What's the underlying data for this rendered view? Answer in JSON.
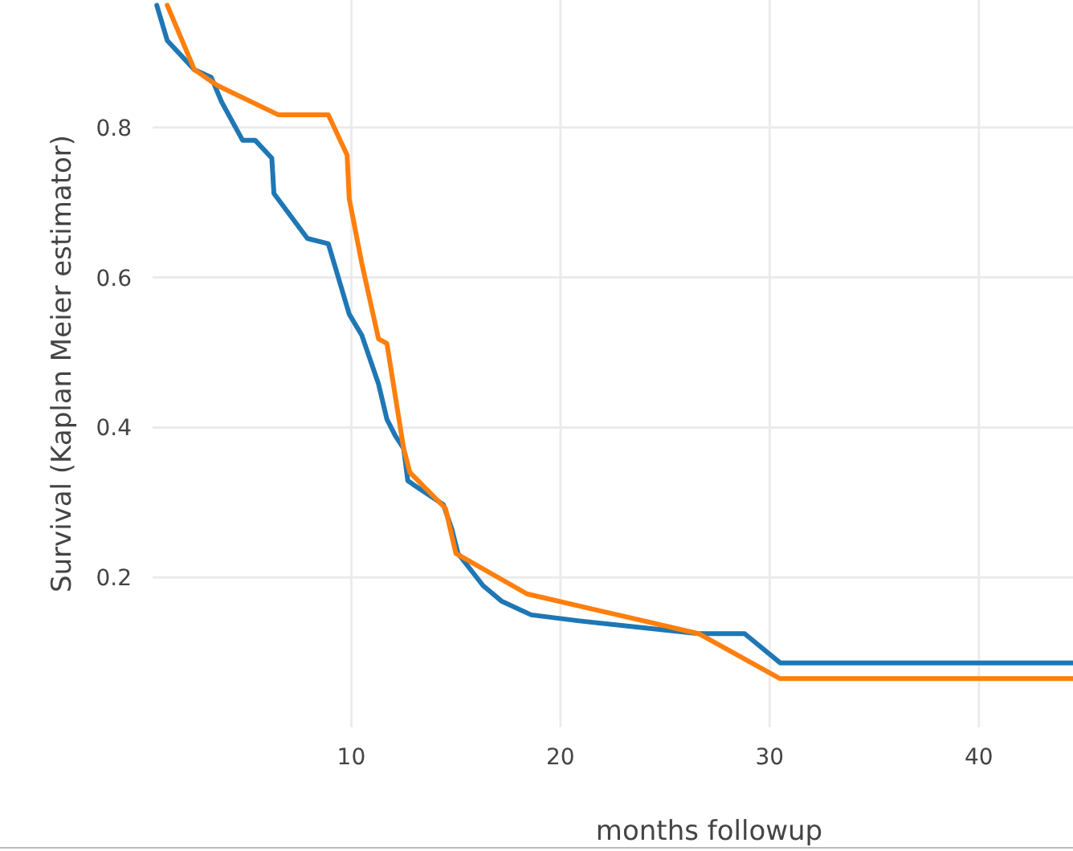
{
  "chart_data": {
    "type": "line",
    "xlabel": "months followup",
    "ylabel": "Survival (Kaplan Meier estimator)",
    "xlim": [
      0.5,
      44.5
    ],
    "ylim": [
      0,
      0.97
    ],
    "xticks": [
      10,
      20,
      30,
      40
    ],
    "yticks": [
      0.2,
      0.4,
      0.6,
      0.8
    ],
    "grid": true,
    "series": [
      {
        "color": "#1f77b4",
        "x": [
          0.7,
          1.2,
          2.5,
          3.3,
          3.8,
          4.8,
          5.4,
          6.2,
          6.3,
          7.9,
          8.9,
          9.9,
          10.5,
          11.3,
          11.7,
          12.1,
          12.5,
          12.7,
          13,
          14.4,
          14.8,
          15.1,
          16.3,
          17.2,
          18.6,
          20.9,
          26.6,
          28.8,
          30.5,
          44.5
        ],
        "values": [
          0.963,
          0.916,
          0.877,
          0.867,
          0.834,
          0.783,
          0.783,
          0.759,
          0.712,
          0.652,
          0.645,
          0.551,
          0.523,
          0.458,
          0.411,
          0.389,
          0.372,
          0.329,
          0.323,
          0.297,
          0.265,
          0.232,
          0.189,
          0.168,
          0.15,
          0.142,
          0.125,
          0.125,
          0.086,
          0.086
        ]
      },
      {
        "color": "#ff7f0e",
        "x": [
          1.2,
          2.5,
          3.6,
          6.5,
          8.9,
          9.8,
          9.9,
          10.5,
          11.3,
          11.7,
          12.5,
          12.8,
          14.5,
          15,
          18.4,
          26.6,
          30.5,
          44.5
        ],
        "values": [
          0.963,
          0.877,
          0.856,
          0.817,
          0.817,
          0.763,
          0.705,
          0.619,
          0.518,
          0.512,
          0.372,
          0.34,
          0.292,
          0.232,
          0.178,
          0.125,
          0.065,
          0.065
        ]
      }
    ]
  }
}
